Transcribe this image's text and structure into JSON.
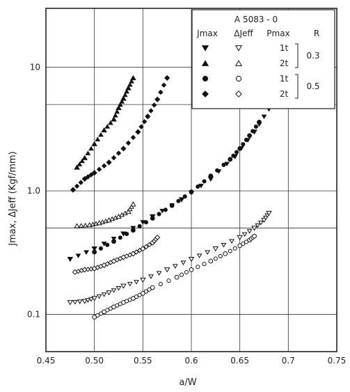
{
  "chart_data": {
    "type": "scatter",
    "title": "",
    "xlabel": "a/W",
    "ylabel": "Jmax, ΔJeff (Kgf/mm)",
    "xlim": [
      0.45,
      0.75
    ],
    "ylim": [
      0.05,
      30
    ],
    "y_scale": "log",
    "grid": true,
    "x_ticks": [
      0.45,
      0.5,
      0.55,
      0.6,
      0.65,
      0.7,
      0.75
    ],
    "x_tick_labels": [
      "0.45",
      "0.50",
      "0.55",
      "0.6",
      "0.65",
      "0.7",
      "0.75"
    ],
    "y_ticks": [
      0.1,
      1,
      10
    ],
    "y_tick_labels": [
      "0.1",
      "1.0",
      "10"
    ],
    "legend": {
      "position": "top-right",
      "title": "A 5083 - 0",
      "headers": [
        "Jmax",
        "ΔJeff",
        "Pmax",
        "R"
      ],
      "rows": [
        {
          "pmax": "1t",
          "jmax_marker": "triangle-down-filled",
          "djeff_marker": "triangle-down-open"
        },
        {
          "pmax": "2t",
          "jmax_marker": "triangle-up-filled",
          "djeff_marker": "triangle-up-open"
        },
        {
          "pmax": "1t",
          "jmax_marker": "circle-filled",
          "djeff_marker": "circle-open"
        },
        {
          "pmax": "2t",
          "jmax_marker": "diamond-filled",
          "djeff_marker": "diamond-open"
        }
      ],
      "r_groups": [
        {
          "label": "0.3",
          "rows": [
            0,
            1
          ]
        },
        {
          "label": "0.5",
          "rows": [
            2,
            3
          ]
        }
      ]
    },
    "series": [
      {
        "marker": "triangle-down-filled",
        "x": [
          0.475,
          0.5,
          0.53,
          0.56,
          0.59,
          0.62,
          0.645,
          0.665,
          0.68
        ],
        "y": [
          0.28,
          0.34,
          0.45,
          0.62,
          0.85,
          1.25,
          1.9,
          3.0,
          4.6
        ]
      },
      {
        "marker": "triangle-down-open",
        "x": [
          0.475,
          0.49,
          0.5,
          0.515,
          0.53,
          0.55,
          0.575,
          0.6,
          0.625,
          0.65,
          0.665,
          0.675,
          0.68
        ],
        "y": [
          0.125,
          0.128,
          0.135,
          0.15,
          0.17,
          0.19,
          0.23,
          0.28,
          0.34,
          0.42,
          0.5,
          0.58,
          0.66
        ]
      },
      {
        "marker": "triangle-up-filled",
        "x": [
          0.482,
          0.49,
          0.5,
          0.51,
          0.52,
          0.525,
          0.53,
          0.535,
          0.54
        ],
        "y": [
          1.55,
          1.85,
          2.4,
          3.1,
          3.8,
          4.7,
          5.6,
          6.8,
          8.2
        ]
      },
      {
        "marker": "triangle-up-open",
        "x": [
          0.482,
          0.495,
          0.505,
          0.515,
          0.525,
          0.535,
          0.54
        ],
        "y": [
          0.52,
          0.53,
          0.55,
          0.58,
          0.62,
          0.68,
          0.78
        ]
      },
      {
        "marker": "circle-filled",
        "x": [
          0.5,
          0.52,
          0.54,
          0.56,
          0.58,
          0.6,
          0.62,
          0.64,
          0.65,
          0.66,
          0.67
        ],
        "y": [
          0.32,
          0.39,
          0.48,
          0.6,
          0.76,
          0.98,
          1.32,
          1.8,
          2.2,
          2.8,
          3.6
        ]
      },
      {
        "marker": "circle-open",
        "x": [
          0.5,
          0.51,
          0.52,
          0.53,
          0.54,
          0.55,
          0.56,
          0.585,
          0.6,
          0.62,
          0.635,
          0.65,
          0.66,
          0.665
        ],
        "y": [
          0.095,
          0.105,
          0.115,
          0.125,
          0.135,
          0.148,
          0.165,
          0.2,
          0.23,
          0.27,
          0.31,
          0.36,
          0.4,
          0.43
        ]
      },
      {
        "marker": "diamond-filled",
        "x": [
          0.478,
          0.49,
          0.5,
          0.515,
          0.53,
          0.545,
          0.555,
          0.565,
          0.575
        ],
        "y": [
          1.02,
          1.25,
          1.4,
          1.7,
          2.2,
          3.0,
          4.0,
          5.5,
          8.2
        ]
      },
      {
        "marker": "diamond-open",
        "x": [
          0.48,
          0.49,
          0.5,
          0.51,
          0.52,
          0.53,
          0.54,
          0.55,
          0.56,
          0.565
        ],
        "y": [
          0.22,
          0.23,
          0.235,
          0.25,
          0.27,
          0.29,
          0.31,
          0.34,
          0.38,
          0.42
        ]
      }
    ]
  }
}
